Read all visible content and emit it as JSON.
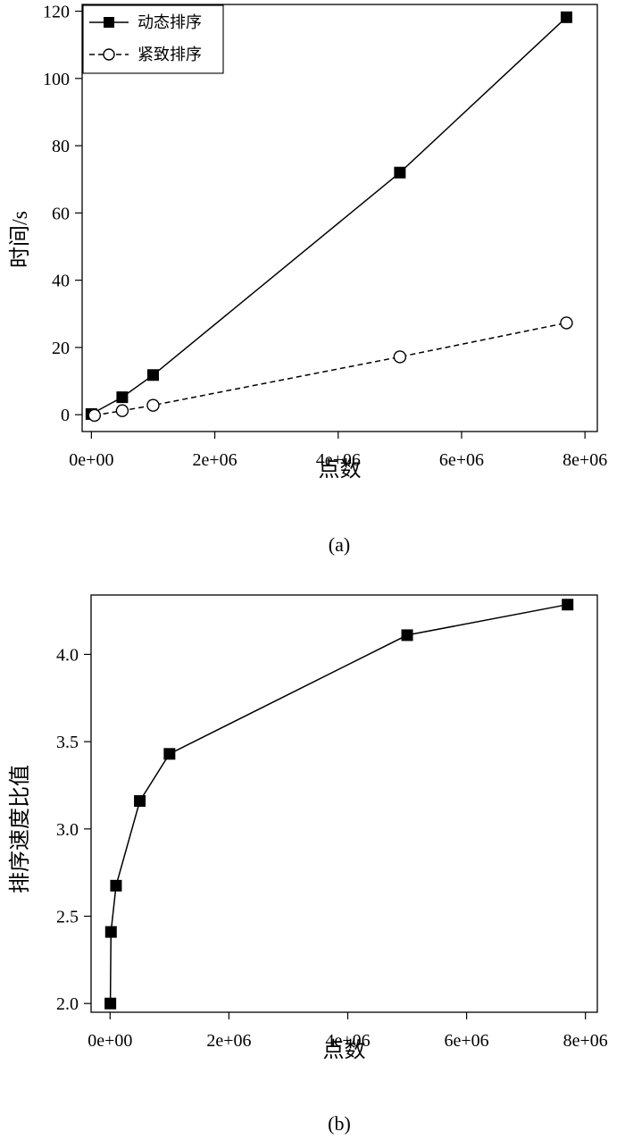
{
  "chart_data": [
    {
      "type": "line",
      "caption": "(a)",
      "xlabel": "点数",
      "ylabel": "时间/s",
      "xlim": [
        -150000,
        8200000
      ],
      "ylim": [
        -5,
        122
      ],
      "x_ticks": [
        0,
        2000000,
        4000000,
        6000000,
        8000000
      ],
      "x_tick_labels": [
        "0e+00",
        "2e+06",
        "4e+06",
        "6e+06",
        "8e+06"
      ],
      "y_ticks": [
        0,
        20,
        40,
        60,
        80,
        100,
        120
      ],
      "y_tick_labels": [
        "0",
        "20",
        "40",
        "60",
        "80",
        "100",
        "120"
      ],
      "legend_position": "top-left",
      "grid": false,
      "series": [
        {
          "name": "动态排序",
          "style": "solid",
          "marker": "filled-square",
          "color": "#000000",
          "x": [
            0,
            500000,
            1000000,
            5000000,
            7700000
          ],
          "y": [
            0.2,
            5.2,
            11.8,
            72,
            118.2
          ]
        },
        {
          "name": "紧致排序",
          "style": "dashed",
          "marker": "open-circle",
          "color": "#000000",
          "x": [
            50000,
            500000,
            1000000,
            5000000,
            7700000
          ],
          "y": [
            -0.2,
            1.2,
            2.8,
            17.2,
            27.3
          ]
        }
      ]
    },
    {
      "type": "line",
      "caption": "(b)",
      "xlabel": "点数",
      "ylabel": "排序速度比值",
      "xlim": [
        -320000,
        8200000
      ],
      "ylim": [
        1.95,
        4.34
      ],
      "x_ticks": [
        0,
        2000000,
        4000000,
        6000000,
        8000000
      ],
      "x_tick_labels": [
        "0e+00",
        "2e+06",
        "4e+06",
        "6e+06",
        "8e+06"
      ],
      "y_ticks": [
        2.0,
        2.5,
        3.0,
        3.5,
        4.0
      ],
      "y_tick_labels": [
        "2.0",
        "2.5",
        "3.0",
        "3.5",
        "4.0"
      ],
      "grid": false,
      "series": [
        {
          "style": "solid",
          "marker": "filled-square",
          "color": "#000000",
          "x": [
            5000,
            15000,
            100000,
            500000,
            1000000,
            5000000,
            7700000
          ],
          "y": [
            2.0,
            2.41,
            2.675,
            3.16,
            3.43,
            4.11,
            4.285
          ]
        }
      ]
    }
  ]
}
